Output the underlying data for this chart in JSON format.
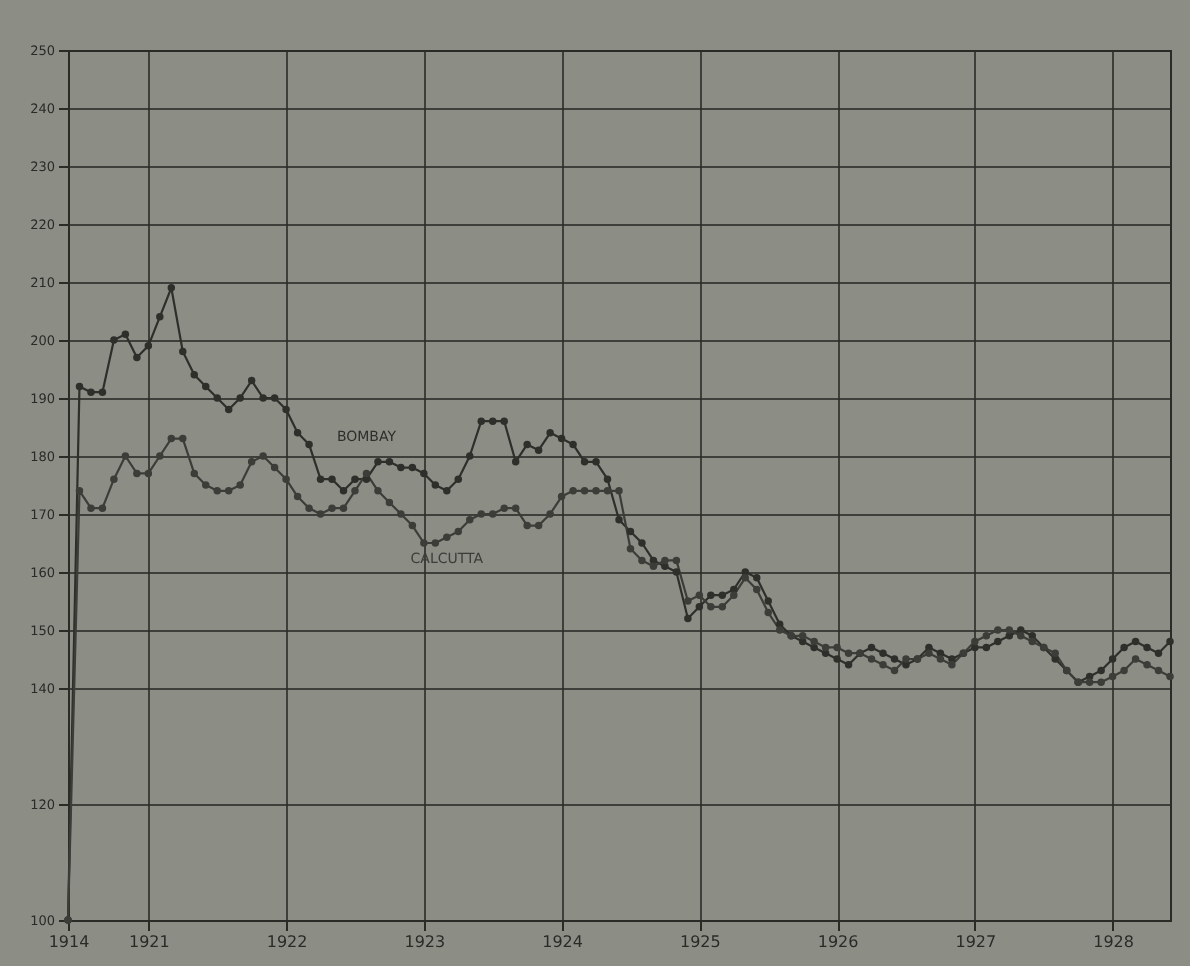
{
  "chart_data": {
    "type": "line",
    "categories": [
      "1914",
      null,
      null,
      null,
      null,
      null,
      null,
      "1921",
      null,
      null,
      null,
      null,
      null,
      null,
      null,
      null,
      null,
      null,
      null,
      "1922",
      null,
      null,
      null,
      null,
      null,
      null,
      null,
      null,
      null,
      null,
      null,
      "1923",
      null,
      null,
      null,
      null,
      null,
      null,
      null,
      null,
      null,
      null,
      null,
      "1924",
      null,
      null,
      null,
      null,
      null,
      null,
      null,
      null,
      null,
      null,
      null,
      "1925",
      null,
      null,
      null,
      null,
      null,
      null,
      null,
      null,
      null,
      null,
      null,
      "1926",
      null,
      null,
      null,
      null,
      null,
      null,
      null,
      null,
      null,
      null,
      null,
      "1927",
      null,
      null,
      null,
      null,
      null,
      null,
      null,
      null,
      null,
      null,
      null,
      "1928",
      null,
      null,
      null,
      null,
      null
    ],
    "series": [
      {
        "name": "BOMBAY",
        "color": "#2e2f2b",
        "values": [
          100,
          192,
          191,
          191,
          200,
          201,
          197,
          199,
          204,
          209,
          198,
          194,
          192,
          190,
          188,
          190,
          193,
          190,
          190,
          188,
          184,
          182,
          176,
          176,
          174,
          176,
          176,
          179,
          179,
          178,
          178,
          177,
          175,
          174,
          176,
          180,
          186,
          186,
          186,
          179,
          182,
          181,
          184,
          183,
          182,
          179,
          179,
          176,
          169,
          167,
          165,
          162,
          161,
          160,
          152,
          154,
          156,
          156,
          157,
          160,
          159,
          155,
          151,
          149,
          148,
          147,
          146,
          145,
          144,
          146,
          147,
          146,
          145,
          144,
          145,
          147,
          146,
          145,
          146,
          147,
          147,
          148,
          149,
          150,
          149,
          147,
          145,
          143,
          141,
          142,
          143,
          145,
          147,
          148,
          147,
          146,
          148
        ]
      },
      {
        "name": "CALCUTTA",
        "color": "#3c3d38",
        "values": [
          100,
          174,
          171,
          171,
          176,
          180,
          177,
          177,
          180,
          183,
          183,
          177,
          175,
          174,
          174,
          175,
          179,
          180,
          178,
          176,
          173,
          171,
          170,
          171,
          171,
          174,
          177,
          174,
          172,
          170,
          168,
          165,
          165,
          166,
          167,
          169,
          170,
          170,
          171,
          171,
          168,
          168,
          170,
          173,
          174,
          174,
          174,
          174,
          174,
          164,
          162,
          161,
          162,
          162,
          155,
          156,
          154,
          154,
          156,
          159,
          157,
          153,
          150,
          149,
          149,
          148,
          147,
          147,
          146,
          146,
          145,
          144,
          143,
          145,
          145,
          146,
          145,
          144,
          146,
          148,
          149,
          150,
          150,
          149,
          148,
          147,
          146,
          143,
          141,
          141,
          141,
          142,
          143,
          145,
          144,
          143,
          142
        ]
      }
    ],
    "ylim": [
      100,
      250
    ],
    "yticks": [
      100,
      120,
      140,
      150,
      160,
      170,
      180,
      190,
      200,
      210,
      220,
      230,
      240,
      250
    ],
    "grid": true,
    "marker": "circle",
    "legend": false
  }
}
